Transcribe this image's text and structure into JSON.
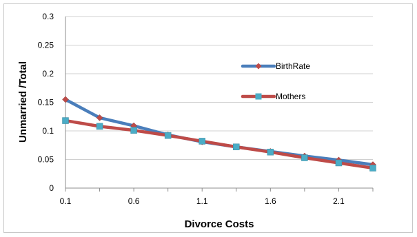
{
  "chart_data": {
    "type": "line",
    "xlabel": "Divorce Costs",
    "ylabel": "Unmarried /Total",
    "ylim": [
      0,
      0.3
    ],
    "yticks": [
      "0",
      "0.05",
      "0.1",
      "0.15",
      "0.2",
      "0.25",
      "0.3"
    ],
    "xticks": [
      "0.1",
      "0.6",
      "1.1",
      "1.6",
      "2.1"
    ],
    "grid": true,
    "legend": "right",
    "series": [
      {
        "name": "BirthRate",
        "color": "#4a7ebb",
        "marker_color": "#be4b48",
        "marker": "diamond",
        "values": [
          0.155,
          0.123,
          0.109,
          0.093,
          0.081,
          0.072,
          0.064,
          0.056,
          0.049,
          0.041
        ]
      },
      {
        "name": "Mothers",
        "color": "#be4b48",
        "marker_color": "#4bacc6",
        "marker": "square",
        "values": [
          0.118,
          0.108,
          0.101,
          0.092,
          0.082,
          0.072,
          0.063,
          0.053,
          0.044,
          0.035
        ]
      }
    ]
  }
}
